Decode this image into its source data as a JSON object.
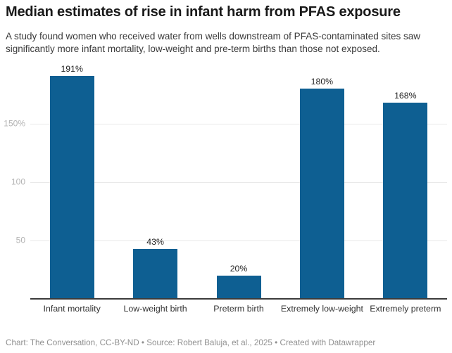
{
  "header": {
    "title": "Median estimates of rise in infant harm from PFAS exposure",
    "subtitle": "A study found women who received water from wells downstream of PFAS-contaminated sites saw significantly more infant mortality, low-weight and pre-term births than those not exposed."
  },
  "chart_data": {
    "type": "bar",
    "title": "Median estimates of rise in infant harm from PFAS exposure",
    "subtitle": "A study found women who received water from wells downstream of PFAS-contaminated sites saw significantly more infant mortality, low-weight and pre-term births than those not exposed.",
    "categories": [
      "Infant mortality",
      "Low-weight birth",
      "Preterm birth",
      "Extremely low-weight",
      "Extremely preterm"
    ],
    "values": [
      191,
      43,
      20,
      180,
      168
    ],
    "value_labels": [
      "191%",
      "43%",
      "20%",
      "180%",
      "168%"
    ],
    "unit": "%",
    "xlabel": "",
    "ylabel": "",
    "ylim": [
      0,
      201
    ],
    "yticks": [
      {
        "value": 50,
        "label": "50"
      },
      {
        "value": 100,
        "label": "100"
      },
      {
        "value": 150,
        "label": "150%"
      }
    ],
    "grid": true,
    "legend": "none"
  },
  "footer": {
    "text": "Chart: The Conversation, CC-BY-ND • Source: Robert Baluja, et al., 2025 • Created with Datawrapper"
  },
  "colors": {
    "bar": "#0e5f92",
    "gridline": "#e9e9e9",
    "axis_line": "#3b3b3b",
    "tick_label": "#b3b3b3",
    "value_label": "#222222",
    "category_label": "#333333",
    "title_text": "#191919",
    "subtitle_text": "#3a3a3a",
    "footer_text": "#909090",
    "background": "#ffffff"
  }
}
